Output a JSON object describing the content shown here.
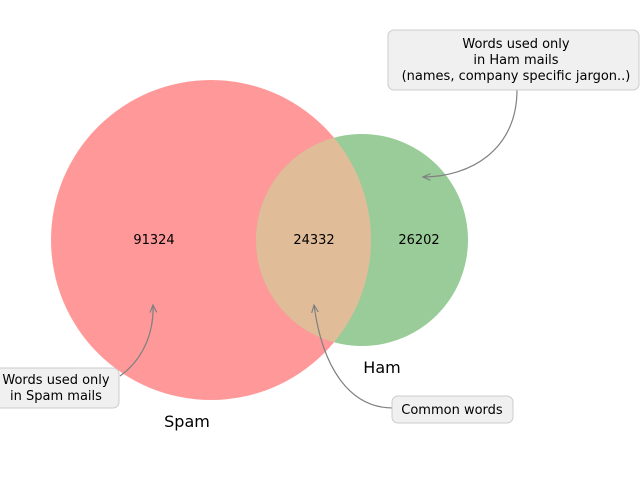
{
  "venn": {
    "sets": [
      {
        "name": "Spam",
        "color": "#ff9999"
      },
      {
        "name": "Ham",
        "color": "#99cc99"
      }
    ],
    "overlap_color": "#e0bd98",
    "regions": {
      "spam_only": "91324",
      "common": "24332",
      "ham_only": "26202"
    }
  },
  "annotations": {
    "ham_only": [
      "Words used only",
      "in Ham mails",
      "(names, company specific jargon..)"
    ],
    "spam_only": [
      "Words used only",
      "in Spam mails"
    ],
    "common": [
      "Common words"
    ]
  }
}
